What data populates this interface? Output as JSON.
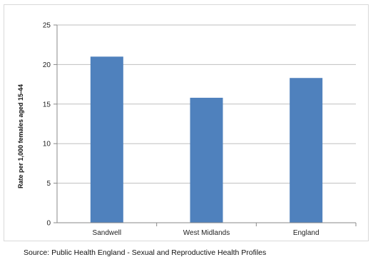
{
  "chart_data": {
    "type": "bar",
    "categories": [
      "Sandwell",
      "West Midlands",
      "England"
    ],
    "values": [
      21.0,
      15.8,
      18.3
    ],
    "title": "",
    "xlabel": "",
    "ylabel": "Rate per 1,000 females aged 15-44",
    "ylim": [
      0,
      25
    ],
    "yticks": [
      0,
      5,
      10,
      15,
      20,
      25
    ],
    "grid": true,
    "legend": "none",
    "bar_color": "#4f81bd",
    "grid_color": "#bfbfbf"
  },
  "footer": {
    "source": "Source: Public Health England - Sexual and Reproductive Health Profiles"
  }
}
